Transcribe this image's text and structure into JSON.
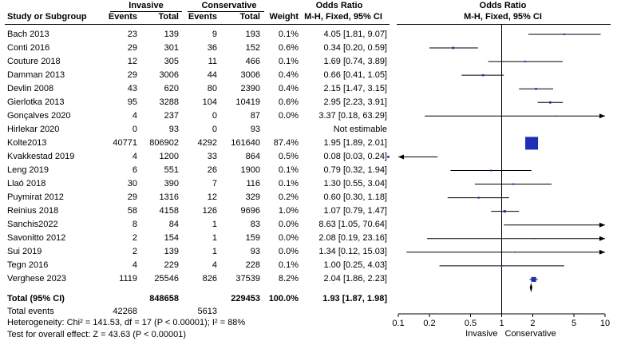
{
  "header": {
    "group1": "Invasive",
    "group2": "Conservative",
    "or_title": "Odds Ratio",
    "or_title_plot": "Odds Ratio",
    "col_study": "Study or Subgroup",
    "col_events1": "Events",
    "col_total1": "Total",
    "col_events2": "Events",
    "col_total2": "Total",
    "col_weight": "Weight",
    "col_method": "M-H, Fixed, 95% CI",
    "col_method_plot": "M-H, Fixed, 95% CI"
  },
  "studies": [
    {
      "name": "Bach 2013",
      "e1": "23",
      "t1": "139",
      "e2": "9",
      "t2": "193",
      "weight": "0.1%",
      "ci_text": "4.05 [1.81, 9.07]"
    },
    {
      "name": "Conti 2016",
      "e1": "29",
      "t1": "301",
      "e2": "36",
      "t2": "152",
      "weight": "0.6%",
      "ci_text": "0.34 [0.20, 0.59]"
    },
    {
      "name": "Couture 2018",
      "e1": "12",
      "t1": "305",
      "e2": "11",
      "t2": "466",
      "weight": "0.1%",
      "ci_text": "1.69 [0.74, 3.89]"
    },
    {
      "name": "Damman 2013",
      "e1": "29",
      "t1": "3006",
      "e2": "44",
      "t2": "3006",
      "weight": "0.4%",
      "ci_text": "0.66 [0.41, 1.05]"
    },
    {
      "name": "Devlin 2008",
      "e1": "43",
      "t1": "620",
      "e2": "80",
      "t2": "2390",
      "weight": "0.4%",
      "ci_text": "2.15 [1.47, 3.15]"
    },
    {
      "name": "Gierlotka 2013",
      "e1": "95",
      "t1": "3288",
      "e2": "104",
      "t2": "10419",
      "weight": "0.6%",
      "ci_text": "2.95 [2.23, 3.91]"
    },
    {
      "name": "Gonçalves 2020",
      "e1": "4",
      "t1": "237",
      "e2": "0",
      "t2": "87",
      "weight": "0.0%",
      "ci_text": "3.37 [0.18, 63.29]"
    },
    {
      "name": "Hirlekar 2020",
      "e1": "0",
      "t1": "93",
      "e2": "0",
      "t2": "93",
      "weight": "",
      "ci_text": "Not estimable"
    },
    {
      "name": "Kolte2013",
      "e1": "40771",
      "t1": "806902",
      "e2": "4292",
      "t2": "161640",
      "weight": "87.4%",
      "ci_text": "1.95 [1.89, 2.01]"
    },
    {
      "name": "Kvakkestad 2019",
      "e1": "4",
      "t1": "1200",
      "e2": "33",
      "t2": "864",
      "weight": "0.5%",
      "ci_text": "0.08 [0.03, 0.24]"
    },
    {
      "name": "Leng 2019",
      "e1": "6",
      "t1": "551",
      "e2": "26",
      "t2": "1900",
      "weight": "0.1%",
      "ci_text": "0.79 [0.32, 1.94]"
    },
    {
      "name": "Llaó 2018",
      "e1": "30",
      "t1": "390",
      "e2": "7",
      "t2": "116",
      "weight": "0.1%",
      "ci_text": "1.30 [0.55, 3.04]"
    },
    {
      "name": "Puymirat 2012",
      "e1": "29",
      "t1": "1316",
      "e2": "12",
      "t2": "329",
      "weight": "0.2%",
      "ci_text": "0.60 [0.30, 1.18]"
    },
    {
      "name": "Reinius 2018",
      "e1": "58",
      "t1": "4158",
      "e2": "126",
      "t2": "9696",
      "weight": "1.0%",
      "ci_text": "1.07 [0.79, 1.47]"
    },
    {
      "name": "Sanchis2022",
      "e1": "8",
      "t1": "84",
      "e2": "1",
      "t2": "83",
      "weight": "0.0%",
      "ci_text": "8.63 [1.05, 70.64]"
    },
    {
      "name": "Savonitto 2012",
      "e1": "2",
      "t1": "154",
      "e2": "1",
      "t2": "159",
      "weight": "0.0%",
      "ci_text": "2.08 [0.19, 23.16]"
    },
    {
      "name": "Sui 2019",
      "e1": "2",
      "t1": "139",
      "e2": "1",
      "t2": "93",
      "weight": "0.0%",
      "ci_text": "1.34 [0.12, 15.03]"
    },
    {
      "name": "Tegn 2016",
      "e1": "4",
      "t1": "229",
      "e2": "4",
      "t2": "228",
      "weight": "0.1%",
      "ci_text": "1.00 [0.25, 4.03]"
    },
    {
      "name": "Verghese 2023",
      "e1": "1119",
      "t1": "25546",
      "e2": "826",
      "t2": "37539",
      "weight": "8.2%",
      "ci_text": "2.04 [1.86, 2.23]"
    }
  ],
  "total": {
    "label": "Total (95% CI)",
    "t1": "848658",
    "t2": "229453",
    "weight": "100.0%",
    "ci_text": "1.93 [1.87, 1.98]",
    "events_label": "Total events",
    "e1": "42268",
    "e2": "5613"
  },
  "stats": {
    "heterogeneity": "Heterogeneity: Chi² = 141.53, df = 17 (P < 0.00001); I² = 88%",
    "overall": "Test for overall effect: Z = 43.63 (P < 0.00001)"
  },
  "chart_data": {
    "type": "forest",
    "title": "Odds Ratio",
    "subtitle": "M-H, Fixed, 95% CI",
    "scale": "log",
    "xlim": [
      0.1,
      10
    ],
    "ticks": [
      0.1,
      0.2,
      0.5,
      1,
      2,
      5,
      10
    ],
    "tick_labels": [
      "0.1",
      "0.2",
      "0.5",
      "1",
      "2",
      "5",
      "10"
    ],
    "left_label": "Invasive",
    "right_label": "Conservative",
    "rows": [
      {
        "study": "Bach 2013",
        "or": 4.05,
        "lo": 1.81,
        "hi": 9.07,
        "weight": 0.1
      },
      {
        "study": "Conti 2016",
        "or": 0.34,
        "lo": 0.2,
        "hi": 0.59,
        "weight": 0.6
      },
      {
        "study": "Couture 2018",
        "or": 1.69,
        "lo": 0.74,
        "hi": 3.89,
        "weight": 0.1
      },
      {
        "study": "Damman 2013",
        "or": 0.66,
        "lo": 0.41,
        "hi": 1.05,
        "weight": 0.4
      },
      {
        "study": "Devlin 2008",
        "or": 2.15,
        "lo": 1.47,
        "hi": 3.15,
        "weight": 0.4
      },
      {
        "study": "Gierlotka 2013",
        "or": 2.95,
        "lo": 2.23,
        "hi": 3.91,
        "weight": 0.6
      },
      {
        "study": "Gonçalves 2020",
        "or": 3.37,
        "lo": 0.18,
        "hi": 63.29,
        "weight": 0.0
      },
      {
        "study": "Hirlekar 2020",
        "or": null,
        "lo": null,
        "hi": null,
        "weight": null
      },
      {
        "study": "Kolte2013",
        "or": 1.95,
        "lo": 1.89,
        "hi": 2.01,
        "weight": 87.4
      },
      {
        "study": "Kvakkestad 2019",
        "or": 0.08,
        "lo": 0.03,
        "hi": 0.24,
        "weight": 0.5
      },
      {
        "study": "Leng 2019",
        "or": 0.79,
        "lo": 0.32,
        "hi": 1.94,
        "weight": 0.1
      },
      {
        "study": "Llaó 2018",
        "or": 1.3,
        "lo": 0.55,
        "hi": 3.04,
        "weight": 0.1
      },
      {
        "study": "Puymirat 2012",
        "or": 0.6,
        "lo": 0.3,
        "hi": 1.18,
        "weight": 0.2
      },
      {
        "study": "Reinius 2018",
        "or": 1.07,
        "lo": 0.79,
        "hi": 1.47,
        "weight": 1.0
      },
      {
        "study": "Sanchis2022",
        "or": 8.63,
        "lo": 1.05,
        "hi": 70.64,
        "weight": 0.0
      },
      {
        "study": "Savonitto 2012",
        "or": 2.08,
        "lo": 0.19,
        "hi": 23.16,
        "weight": 0.0
      },
      {
        "study": "Sui 2019",
        "or": 1.34,
        "lo": 0.12,
        "hi": 15.03,
        "weight": 0.0
      },
      {
        "study": "Tegn 2016",
        "or": 1.0,
        "lo": 0.25,
        "hi": 4.03,
        "weight": 0.1
      },
      {
        "study": "Verghese 2023",
        "or": 2.04,
        "lo": 1.86,
        "hi": 2.23,
        "weight": 8.2
      }
    ],
    "pooled": {
      "or": 1.93,
      "lo": 1.87,
      "hi": 1.98
    },
    "colors": {
      "marker": "#1f2fb5",
      "line": "#000000"
    }
  }
}
